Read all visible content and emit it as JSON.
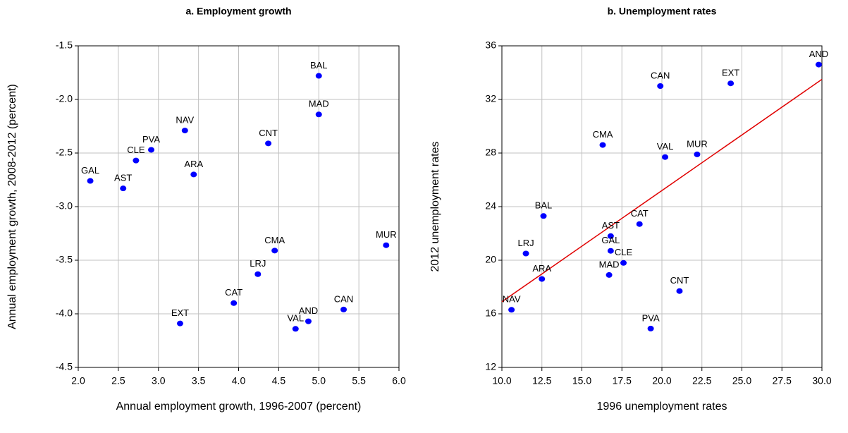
{
  "chart_data": [
    {
      "type": "scatter",
      "title": "a. Employment growth",
      "x_label": "Annual employment growth, 1996-2007 (percent)",
      "y_label": "Annual employment growth, 2008-2012 (percent)",
      "xlim": [
        2.0,
        6.0
      ],
      "xticks": [
        {
          "value": 2.0,
          "label": "2.0"
        },
        2.5,
        {
          "value": 3.0,
          "label": "3.0"
        },
        3.5,
        {
          "value": 4.0,
          "label": "4.0"
        },
        4.5,
        {
          "value": 5.0,
          "label": "5.0"
        },
        5.5,
        {
          "value": 6.0,
          "label": "6.0"
        }
      ],
      "ylim": [
        -4.5,
        -1.5
      ],
      "yticks": [
        -4.5,
        {
          "value": -4.0,
          "label": "-4.0"
        },
        -3.5,
        {
          "value": -3.0,
          "label": "-3.0"
        },
        -2.5,
        {
          "value": -2.0,
          "label": "-2.0"
        },
        -1.5
      ],
      "grid": true,
      "points": {
        "color": "#0000ff",
        "labels": [
          "BAL",
          "MAD",
          "NAV",
          "CNT",
          "PVA",
          "CLE",
          "GAL",
          "AST",
          "ARA",
          "MUR",
          "CMA",
          "LRJ",
          "CAT",
          "CAN",
          "AND",
          "VAL",
          "EXT"
        ],
        "x": [
          5.0,
          5.0,
          3.33,
          4.37,
          2.91,
          2.72,
          2.15,
          2.56,
          3.44,
          5.84,
          4.45,
          4.24,
          3.94,
          5.31,
          4.87,
          4.71,
          3.27
        ],
        "y": [
          -1.78,
          -2.14,
          -2.29,
          -2.41,
          -2.47,
          -2.57,
          -2.76,
          -2.83,
          -2.7,
          -3.36,
          -3.41,
          -3.63,
          -3.9,
          -3.96,
          -4.07,
          -4.14,
          -4.09
        ]
      }
    },
    {
      "type": "scatter",
      "title": "b. Unemployment rates",
      "x_label": "1996 unemployment rates",
      "y_label": "2012 unemployment rates",
      "xlim": [
        10.0,
        30.0
      ],
      "xticks": [
        {
          "value": 10.0,
          "label": "10.0"
        },
        12.5,
        {
          "value": 15.0,
          "label": "15.0"
        },
        17.5,
        {
          "value": 20.0,
          "label": "20.0"
        },
        22.5,
        {
          "value": 25.0,
          "label": "25.0"
        },
        27.5,
        {
          "value": 30.0,
          "label": "30.0"
        }
      ],
      "ylim": [
        12,
        36
      ],
      "yticks": [
        12,
        16,
        20,
        24,
        28,
        32,
        36
      ],
      "grid": true,
      "points": {
        "color": "#0000ff",
        "labels": [
          "AND",
          "EXT",
          "CAN",
          "CMA",
          "VAL",
          "MUR",
          "BAL",
          "CAT",
          "AST",
          "GAL",
          "LRJ",
          "CLE",
          "ARA",
          "MAD",
          "CNT",
          "NAV",
          "PVA"
        ],
        "x": [
          29.8,
          24.3,
          19.9,
          16.3,
          20.2,
          22.2,
          12.6,
          18.6,
          16.8,
          16.8,
          11.5,
          17.6,
          12.5,
          16.7,
          21.1,
          10.6,
          19.3
        ],
        "y": [
          34.6,
          33.2,
          33.0,
          28.6,
          27.7,
          27.9,
          23.3,
          22.7,
          21.8,
          20.7,
          20.5,
          19.8,
          18.6,
          18.9,
          17.7,
          16.3,
          14.9
        ]
      },
      "fit_line": {
        "color": "#e00000",
        "x": [
          10.0,
          30.0
        ],
        "y": [
          16.9,
          33.5
        ]
      }
    }
  ]
}
